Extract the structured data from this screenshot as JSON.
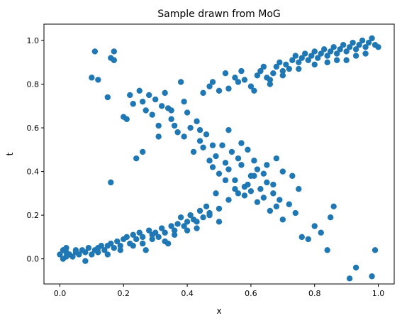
{
  "chart_data": {
    "type": "scatter",
    "title": "Sample drawn from MoG",
    "xlabel": "x",
    "ylabel": "t",
    "xlim": [
      -0.05,
      1.05
    ],
    "ylim": [
      -0.115,
      1.075
    ],
    "xticks": [
      0.0,
      0.2,
      0.4,
      0.6,
      0.8,
      1.0
    ],
    "xtick_labels": [
      "0.0",
      "0.2",
      "0.4",
      "0.6",
      "0.8",
      "1.0"
    ],
    "yticks": [
      0.0,
      0.2,
      0.4,
      0.6,
      0.8,
      1.0
    ],
    "ytick_labels": [
      "0.0",
      "0.2",
      "0.4",
      "0.6",
      "0.8",
      "1.0"
    ],
    "grid": false,
    "legend": false,
    "marker_color": "#1f77b4",
    "series": [
      {
        "points": [
          [
            0.0,
            0.02
          ],
          [
            0.01,
            0.0
          ],
          [
            0.01,
            0.04
          ],
          [
            0.02,
            0.01
          ],
          [
            0.02,
            0.03
          ],
          [
            0.03,
            0.02
          ],
          [
            0.04,
            0.01
          ],
          [
            0.05,
            0.03
          ],
          [
            0.06,
            0.02
          ],
          [
            0.07,
            0.04
          ],
          [
            0.08,
            -0.01
          ],
          [
            0.08,
            0.03
          ],
          [
            0.09,
            0.05
          ],
          [
            0.1,
            0.02
          ],
          [
            0.11,
            0.04
          ],
          [
            0.12,
            0.05
          ],
          [
            0.13,
            0.06
          ],
          [
            0.14,
            0.04
          ],
          [
            0.15,
            0.06
          ],
          [
            0.16,
            0.07
          ],
          [
            0.17,
            0.05
          ],
          [
            0.18,
            0.08
          ],
          [
            0.19,
            0.06
          ],
          [
            0.2,
            0.09
          ],
          [
            0.21,
            0.1
          ],
          [
            0.22,
            0.07
          ],
          [
            0.23,
            0.11
          ],
          [
            0.24,
            0.09
          ],
          [
            0.25,
            0.12
          ],
          [
            0.26,
            0.1
          ],
          [
            0.27,
            0.04
          ],
          [
            0.28,
            0.13
          ],
          [
            0.29,
            0.11
          ],
          [
            0.3,
            0.12
          ],
          [
            0.31,
            0.1
          ],
          [
            0.32,
            0.14
          ],
          [
            0.33,
            0.12
          ],
          [
            0.34,
            0.07
          ],
          [
            0.35,
            0.15
          ],
          [
            0.36,
            0.13
          ],
          [
            0.37,
            0.16
          ],
          [
            0.38,
            0.19
          ],
          [
            0.39,
            0.15
          ],
          [
            0.4,
            0.17
          ],
          [
            0.41,
            0.2
          ],
          [
            0.42,
            0.18
          ],
          [
            0.43,
            0.14
          ],
          [
            0.44,
            0.22
          ],
          [
            0.45,
            0.19
          ],
          [
            0.46,
            0.24
          ],
          [
            0.47,
            0.21
          ],
          [
            0.49,
            0.3
          ],
          [
            0.5,
            0.17
          ],
          [
            0.52,
            0.36
          ],
          [
            0.55,
            0.32
          ],
          [
            0.58,
            0.33
          ],
          [
            0.6,
            0.38
          ],
          [
            0.02,
            0.05
          ],
          [
            0.05,
            0.04
          ],
          [
            0.12,
            0.03
          ],
          [
            0.15,
            0.02
          ],
          [
            0.19,
            0.04
          ],
          [
            0.23,
            0.06
          ],
          [
            0.26,
            0.07
          ],
          [
            0.29,
            0.09
          ],
          [
            0.33,
            0.08
          ],
          [
            0.36,
            0.11
          ],
          [
            0.4,
            0.13
          ],
          [
            0.43,
            0.17
          ],
          [
            0.47,
            0.2
          ],
          [
            0.5,
            0.23
          ],
          [
            0.53,
            0.27
          ],
          [
            0.56,
            0.3
          ],
          [
            0.62,
            0.41
          ],
          [
            0.65,
            0.43
          ],
          [
            0.68,
            0.46
          ],
          [
            0.45,
            0.76
          ],
          [
            0.47,
            0.79
          ],
          [
            0.48,
            0.81
          ],
          [
            0.5,
            0.77
          ],
          [
            0.52,
            0.85
          ],
          [
            0.53,
            0.78
          ],
          [
            0.55,
            0.83
          ],
          [
            0.56,
            0.81
          ],
          [
            0.57,
            0.86
          ],
          [
            0.58,
            0.82
          ],
          [
            0.6,
            0.79
          ],
          [
            0.62,
            0.84
          ],
          [
            0.63,
            0.86
          ],
          [
            0.64,
            0.88
          ],
          [
            0.65,
            0.83
          ],
          [
            0.66,
            0.82
          ],
          [
            0.67,
            0.85
          ],
          [
            0.68,
            0.88
          ],
          [
            0.69,
            0.9
          ],
          [
            0.7,
            0.86
          ],
          [
            0.71,
            0.89
          ],
          [
            0.72,
            0.87
          ],
          [
            0.73,
            0.91
          ],
          [
            0.74,
            0.93
          ],
          [
            0.75,
            0.9
          ],
          [
            0.76,
            0.92
          ],
          [
            0.77,
            0.94
          ],
          [
            0.78,
            0.91
          ],
          [
            0.79,
            0.93
          ],
          [
            0.8,
            0.95
          ],
          [
            0.81,
            0.92
          ],
          [
            0.82,
            0.94
          ],
          [
            0.83,
            0.96
          ],
          [
            0.84,
            0.93
          ],
          [
            0.85,
            0.95
          ],
          [
            0.86,
            0.97
          ],
          [
            0.87,
            0.94
          ],
          [
            0.88,
            0.96
          ],
          [
            0.89,
            0.98
          ],
          [
            0.9,
            0.95
          ],
          [
            0.91,
            0.97
          ],
          [
            0.92,
            0.99
          ],
          [
            0.93,
            0.96
          ],
          [
            0.94,
            0.98
          ],
          [
            0.95,
            1.0
          ],
          [
            0.96,
            0.97
          ],
          [
            0.97,
            0.99
          ],
          [
            0.98,
            1.01
          ],
          [
            0.99,
            0.98
          ],
          [
            1.0,
            0.97
          ],
          [
            0.96,
            0.94
          ],
          [
            0.93,
            0.93
          ],
          [
            0.9,
            0.91
          ],
          [
            0.87,
            0.91
          ],
          [
            0.84,
            0.9
          ],
          [
            0.8,
            0.89
          ],
          [
            0.75,
            0.87
          ],
          [
            0.7,
            0.84
          ],
          [
            0.66,
            0.8
          ],
          [
            0.61,
            0.77
          ],
          [
            0.1,
            0.83
          ],
          [
            0.11,
            0.95
          ],
          [
            0.12,
            0.82
          ],
          [
            0.15,
            0.74
          ],
          [
            0.16,
            0.92
          ],
          [
            0.17,
            0.91
          ],
          [
            0.17,
            0.95
          ],
          [
            0.2,
            0.65
          ],
          [
            0.21,
            0.64
          ],
          [
            0.22,
            0.75
          ],
          [
            0.23,
            0.71
          ],
          [
            0.25,
            0.77
          ],
          [
            0.26,
            0.72
          ],
          [
            0.27,
            0.68
          ],
          [
            0.28,
            0.75
          ],
          [
            0.29,
            0.66
          ],
          [
            0.3,
            0.73
          ],
          [
            0.31,
            0.61
          ],
          [
            0.32,
            0.7
          ],
          [
            0.33,
            0.76
          ],
          [
            0.34,
            0.69
          ],
          [
            0.35,
            0.64
          ],
          [
            0.36,
            0.61
          ],
          [
            0.37,
            0.58
          ],
          [
            0.38,
            0.81
          ],
          [
            0.39,
            0.56
          ],
          [
            0.4,
            0.67
          ],
          [
            0.41,
            0.6
          ],
          [
            0.42,
            0.49
          ],
          [
            0.43,
            0.63
          ],
          [
            0.44,
            0.54
          ],
          [
            0.45,
            0.51
          ],
          [
            0.46,
            0.57
          ],
          [
            0.47,
            0.45
          ],
          [
            0.48,
            0.42
          ],
          [
            0.49,
            0.47
          ],
          [
            0.5,
            0.39
          ],
          [
            0.51,
            0.52
          ],
          [
            0.52,
            0.44
          ],
          [
            0.53,
            0.41
          ],
          [
            0.54,
            0.49
          ],
          [
            0.55,
            0.36
          ],
          [
            0.56,
            0.46
          ],
          [
            0.57,
            0.43
          ],
          [
            0.58,
            0.29
          ],
          [
            0.59,
            0.34
          ],
          [
            0.6,
            0.31
          ],
          [
            0.61,
            0.38
          ],
          [
            0.62,
            0.26
          ],
          [
            0.63,
            0.32
          ],
          [
            0.64,
            0.28
          ],
          [
            0.65,
            0.35
          ],
          [
            0.66,
            0.22
          ],
          [
            0.67,
            0.3
          ],
          [
            0.68,
            0.24
          ],
          [
            0.69,
            0.27
          ],
          [
            0.7,
            0.18
          ],
          [
            0.72,
            0.25
          ],
          [
            0.74,
            0.21
          ],
          [
            0.76,
            0.1
          ],
          [
            0.78,
            0.09
          ],
          [
            0.8,
            0.15
          ],
          [
            0.82,
            0.12
          ],
          [
            0.84,
            0.04
          ],
          [
            0.85,
            0.19
          ],
          [
            0.86,
            0.24
          ],
          [
            0.91,
            -0.09
          ],
          [
            0.93,
            -0.04
          ],
          [
            0.98,
            -0.08
          ],
          [
            0.99,
            0.04
          ],
          [
            0.16,
            0.35
          ],
          [
            0.24,
            0.46
          ],
          [
            0.26,
            0.49
          ],
          [
            0.31,
            0.56
          ],
          [
            0.35,
            0.68
          ],
          [
            0.39,
            0.72
          ],
          [
            0.44,
            0.59
          ],
          [
            0.48,
            0.52
          ],
          [
            0.53,
            0.59
          ],
          [
            0.57,
            0.53
          ],
          [
            0.59,
            0.5
          ],
          [
            0.61,
            0.45
          ],
          [
            0.64,
            0.39
          ],
          [
            0.67,
            0.34
          ],
          [
            0.7,
            0.4
          ],
          [
            0.73,
            0.38
          ],
          [
            0.75,
            0.32
          ]
        ]
      }
    ]
  }
}
